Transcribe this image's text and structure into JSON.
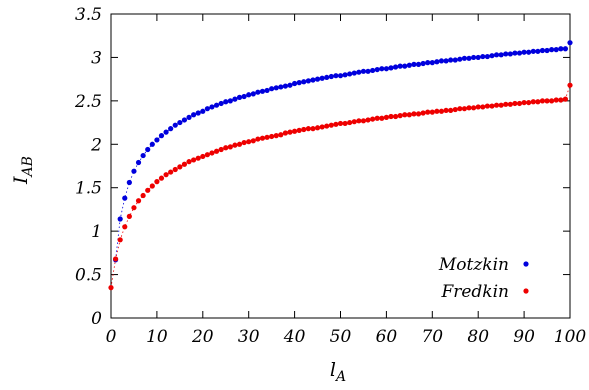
{
  "chart_data": {
    "type": "scatter",
    "xlabel": "l",
    "xlabel_sub": "A",
    "ylabel": "I",
    "ylabel_sub": "AB",
    "xlim": [
      0,
      100
    ],
    "ylim": [
      0,
      3.5
    ],
    "xticks": [
      "0",
      "10",
      "20",
      "30",
      "40",
      "50",
      "60",
      "70",
      "80",
      "90",
      "100"
    ],
    "yticks": [
      "0",
      "0.5",
      "1",
      "1.5",
      "2",
      "2.5",
      "3",
      "3.5"
    ],
    "xtick_values": [
      0,
      10,
      20,
      30,
      40,
      50,
      60,
      70,
      80,
      90,
      100
    ],
    "ytick_values": [
      0,
      0.5,
      1,
      1.5,
      2,
      2.5,
      3,
      3.5
    ],
    "grid": false,
    "legend_position": "bottom-right",
    "series": [
      {
        "name": "Motzkin",
        "color": "#0000dd",
        "x": [
          1,
          2,
          3,
          4,
          5,
          6,
          7,
          8,
          9,
          10,
          11,
          12,
          13,
          14,
          15,
          16,
          17,
          18,
          19,
          20,
          21,
          22,
          23,
          24,
          25,
          26,
          27,
          28,
          29,
          30,
          31,
          32,
          33,
          34,
          35,
          36,
          37,
          38,
          39,
          40,
          41,
          42,
          43,
          44,
          45,
          46,
          47,
          48,
          49,
          50,
          51,
          52,
          53,
          54,
          55,
          56,
          57,
          58,
          59,
          60,
          61,
          62,
          63,
          64,
          65,
          66,
          67,
          68,
          69,
          70,
          71,
          72,
          73,
          74,
          75,
          76,
          77,
          78,
          79,
          80,
          81,
          82,
          83,
          84,
          85,
          86,
          87,
          88,
          89,
          90,
          91,
          92,
          93,
          94,
          95,
          96,
          97,
          98,
          99,
          100
        ],
        "y": [
          0.67,
          1.14,
          1.38,
          1.56,
          1.69,
          1.79,
          1.87,
          1.94,
          2.0,
          2.05,
          2.1,
          2.14,
          2.18,
          2.22,
          2.25,
          2.28,
          2.31,
          2.34,
          2.36,
          2.38,
          2.41,
          2.43,
          2.45,
          2.47,
          2.49,
          2.5,
          2.52,
          2.54,
          2.55,
          2.57,
          2.58,
          2.6,
          2.61,
          2.62,
          2.64,
          2.65,
          2.66,
          2.67,
          2.68,
          2.7,
          2.71,
          2.72,
          2.73,
          2.74,
          2.75,
          2.76,
          2.77,
          2.78,
          2.79,
          2.79,
          2.8,
          2.81,
          2.82,
          2.83,
          2.84,
          2.84,
          2.85,
          2.86,
          2.87,
          2.87,
          2.88,
          2.89,
          2.9,
          2.9,
          2.91,
          2.92,
          2.92,
          2.93,
          2.94,
          2.94,
          2.95,
          2.96,
          2.96,
          2.97,
          2.97,
          2.98,
          2.99,
          2.99,
          3.0,
          3.0,
          3.01,
          3.01,
          3.02,
          3.03,
          3.03,
          3.04,
          3.04,
          3.05,
          3.05,
          3.06,
          3.06,
          3.07,
          3.07,
          3.08,
          3.08,
          3.09,
          3.09,
          3.1,
          3.1,
          3.17
        ]
      },
      {
        "name": "Fredkin",
        "color": "#ee0000",
        "x": [
          0,
          1,
          2,
          3,
          4,
          5,
          6,
          7,
          8,
          9,
          10,
          11,
          12,
          13,
          14,
          15,
          16,
          17,
          18,
          19,
          20,
          21,
          22,
          23,
          24,
          25,
          26,
          27,
          28,
          29,
          30,
          31,
          32,
          33,
          34,
          35,
          36,
          37,
          38,
          39,
          40,
          41,
          42,
          43,
          44,
          45,
          46,
          47,
          48,
          49,
          50,
          51,
          52,
          53,
          54,
          55,
          56,
          57,
          58,
          59,
          60,
          61,
          62,
          63,
          64,
          65,
          66,
          67,
          68,
          69,
          70,
          71,
          72,
          73,
          74,
          75,
          76,
          77,
          78,
          79,
          80,
          81,
          82,
          83,
          84,
          85,
          86,
          87,
          88,
          89,
          90,
          91,
          92,
          93,
          94,
          95,
          96,
          97,
          98,
          99,
          100
        ],
        "y": [
          0.35,
          0.68,
          0.9,
          1.05,
          1.17,
          1.27,
          1.35,
          1.41,
          1.47,
          1.52,
          1.57,
          1.61,
          1.65,
          1.68,
          1.71,
          1.74,
          1.77,
          1.8,
          1.82,
          1.84,
          1.86,
          1.88,
          1.9,
          1.92,
          1.94,
          1.96,
          1.97,
          1.99,
          2.0,
          2.02,
          2.03,
          2.04,
          2.06,
          2.07,
          2.08,
          2.09,
          2.1,
          2.11,
          2.13,
          2.14,
          2.15,
          2.16,
          2.17,
          2.18,
          2.18,
          2.19,
          2.2,
          2.21,
          2.22,
          2.23,
          2.24,
          2.24,
          2.25,
          2.26,
          2.27,
          2.27,
          2.28,
          2.29,
          2.3,
          2.3,
          2.31,
          2.32,
          2.32,
          2.33,
          2.34,
          2.34,
          2.35,
          2.35,
          2.36,
          2.37,
          2.37,
          2.38,
          2.38,
          2.39,
          2.39,
          2.4,
          2.41,
          2.41,
          2.42,
          2.42,
          2.43,
          2.43,
          2.44,
          2.44,
          2.45,
          2.45,
          2.46,
          2.46,
          2.47,
          2.47,
          2.48,
          2.48,
          2.49,
          2.49,
          2.5,
          2.5,
          2.5,
          2.51,
          2.51,
          2.52,
          2.68
        ]
      }
    ]
  }
}
